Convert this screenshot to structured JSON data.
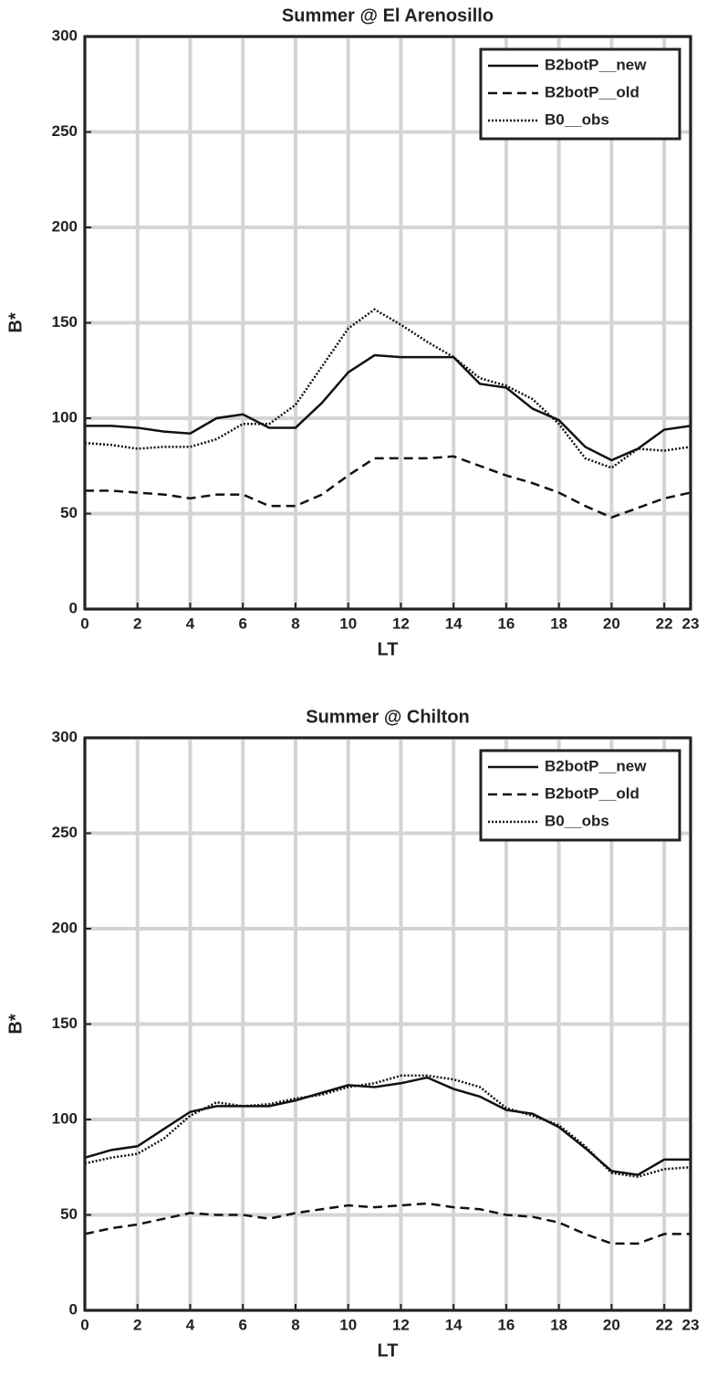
{
  "chart_data": [
    {
      "type": "line",
      "title": "Summer @ El Arenosillo",
      "xlabel": "LT",
      "ylabel": "B*",
      "x": [
        0,
        1,
        2,
        3,
        4,
        5,
        6,
        7,
        8,
        9,
        10,
        11,
        12,
        13,
        14,
        15,
        16,
        17,
        18,
        19,
        20,
        21,
        22,
        23
      ],
      "series": [
        {
          "name": "B2botP__new",
          "color": "#111111",
          "dash": "solid",
          "values": [
            96,
            96,
            95,
            93,
            92,
            100,
            102,
            95,
            95,
            108,
            124,
            133,
            132,
            132,
            132,
            118,
            116,
            105,
            99,
            85,
            78,
            84,
            94,
            96
          ]
        },
        {
          "name": "B2botP__old",
          "color": "#111111",
          "dash": "dashed",
          "values": [
            62,
            62,
            61,
            60,
            58,
            60,
            60,
            54,
            54,
            60,
            70,
            79,
            79,
            79,
            80,
            75,
            70,
            66,
            61,
            54,
            48,
            53,
            58,
            61
          ]
        },
        {
          "name": "B0__obs",
          "color": "#111111",
          "dash": "dotted",
          "values": [
            87,
            86,
            84,
            85,
            85,
            89,
            97,
            97,
            107,
            127,
            147,
            157,
            149,
            140,
            132,
            121,
            117,
            110,
            97,
            79,
            74,
            84,
            83,
            85
          ]
        }
      ],
      "xlim": [
        0,
        23
      ],
      "ylim": [
        0,
        300
      ],
      "xticks": [
        0,
        2,
        4,
        6,
        8,
        10,
        12,
        14,
        16,
        18,
        20,
        22,
        23
      ],
      "yticks": [
        0,
        50,
        100,
        150,
        200,
        250,
        300
      ],
      "grid": true,
      "legend": "upper right"
    },
    {
      "type": "line",
      "title": "Summer @ Chilton",
      "xlabel": "LT",
      "ylabel": "B*",
      "x": [
        0,
        1,
        2,
        3,
        4,
        5,
        6,
        7,
        8,
        9,
        10,
        11,
        12,
        13,
        14,
        15,
        16,
        17,
        18,
        19,
        20,
        21,
        22,
        23
      ],
      "series": [
        {
          "name": "B2botP__new",
          "color": "#111111",
          "dash": "solid",
          "values": [
            80,
            84,
            86,
            95,
            104,
            107,
            107,
            107,
            110,
            114,
            118,
            117,
            119,
            122,
            116,
            112,
            105,
            103,
            96,
            85,
            73,
            71,
            79,
            79
          ]
        },
        {
          "name": "B2botP__old",
          "color": "#111111",
          "dash": "dashed",
          "values": [
            40,
            43,
            45,
            48,
            51,
            50,
            50,
            48,
            51,
            53,
            55,
            54,
            55,
            56,
            54,
            53,
            50,
            49,
            46,
            40,
            35,
            35,
            40,
            40
          ]
        },
        {
          "name": "B0__obs",
          "color": "#111111",
          "dash": "dotted",
          "values": [
            77,
            80,
            82,
            90,
            102,
            109,
            107,
            108,
            111,
            113,
            117,
            119,
            123,
            123,
            121,
            117,
            106,
            102,
            97,
            86,
            72,
            70,
            74,
            75
          ]
        }
      ],
      "xlim": [
        0,
        23
      ],
      "ylim": [
        0,
        300
      ],
      "xticks": [
        0,
        2,
        4,
        6,
        8,
        10,
        12,
        14,
        16,
        18,
        20,
        22,
        23
      ],
      "yticks": [
        0,
        50,
        100,
        150,
        200,
        250,
        300
      ],
      "grid": true,
      "legend": "upper right"
    }
  ]
}
